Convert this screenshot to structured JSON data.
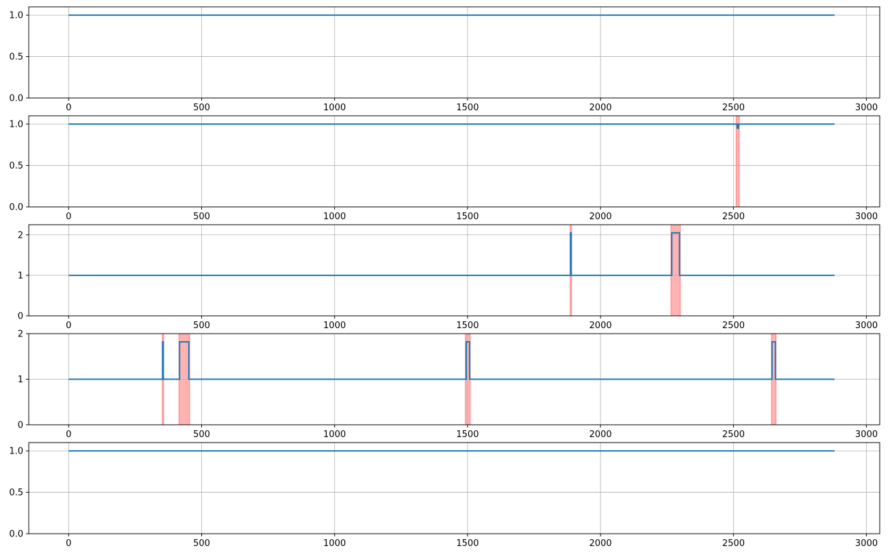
{
  "chart_data": [
    {
      "type": "line",
      "xlim": [
        -150,
        3050
      ],
      "ylim": [
        0,
        1.1
      ],
      "xticks": [
        "0",
        "500",
        "1000",
        "1500",
        "2000",
        "2500",
        "3000"
      ],
      "yticks": [
        "0.0",
        "0.5",
        "1.0"
      ],
      "grid": true,
      "series": [
        {
          "points": [
            [
              0,
              1.0
            ],
            [
              2880,
              1.0
            ]
          ]
        }
      ],
      "highlight_spans": []
    },
    {
      "type": "line",
      "xlim": [
        -150,
        3050
      ],
      "ylim": [
        0,
        1.1
      ],
      "xticks": [
        "0",
        "500",
        "1000",
        "1500",
        "2000",
        "2500",
        "3000"
      ],
      "yticks": [
        "0.0",
        "0.5",
        "1.0"
      ],
      "grid": true,
      "series": [
        {
          "points": [
            [
              0,
              1.0
            ],
            [
              2514,
              1.0
            ],
            [
              2514,
              0.95
            ],
            [
              2519,
              0.95
            ],
            [
              2519,
              1.0
            ],
            [
              2880,
              1.0
            ]
          ]
        }
      ],
      "highlight_spans": [
        [
          2510,
          2522
        ]
      ]
    },
    {
      "type": "line",
      "xlim": [
        -150,
        3050
      ],
      "ylim": [
        0,
        2.25
      ],
      "xticks": [
        "0",
        "500",
        "1000",
        "1500",
        "2000",
        "2500",
        "3000"
      ],
      "yticks": [
        "0",
        "1",
        "2"
      ],
      "grid": true,
      "series": [
        {
          "points": [
            [
              0,
              1.0
            ],
            [
              1887,
              1.0
            ],
            [
              1887,
              2.05
            ],
            [
              1890,
              2.05
            ],
            [
              1890,
              1.0
            ],
            [
              2268,
              1.0
            ],
            [
              2268,
              2.05
            ],
            [
              2297,
              2.05
            ],
            [
              2297,
              1.0
            ],
            [
              2880,
              1.0
            ]
          ]
        }
      ],
      "highlight_spans": [
        [
          1886,
          1891
        ],
        [
          2265,
          2300
        ]
      ]
    },
    {
      "type": "line",
      "xlim": [
        -150,
        3050
      ],
      "ylim": [
        0,
        2.0
      ],
      "xticks": [
        "0",
        "500",
        "1000",
        "1500",
        "2000",
        "2500",
        "3000"
      ],
      "yticks": [
        "0",
        "1",
        "2"
      ],
      "grid": true,
      "series": [
        {
          "points": [
            [
              0,
              1.0
            ],
            [
              353,
              1.0
            ],
            [
              353,
              1.82
            ],
            [
              356,
              1.82
            ],
            [
              356,
              1.0
            ],
            [
              417,
              1.0
            ],
            [
              417,
              1.82
            ],
            [
              452,
              1.82
            ],
            [
              452,
              1.0
            ],
            [
              1495,
              1.0
            ],
            [
              1495,
              1.82
            ],
            [
              1508,
              1.82
            ],
            [
              1508,
              1.0
            ],
            [
              2645,
              1.0
            ],
            [
              2645,
              1.82
            ],
            [
              2658,
              1.82
            ],
            [
              2658,
              1.0
            ],
            [
              2880,
              1.0
            ]
          ]
        }
      ],
      "highlight_spans": [
        [
          352,
          357
        ],
        [
          415,
          455
        ],
        [
          1492,
          1510
        ],
        [
          2643,
          2660
        ]
      ]
    },
    {
      "type": "line",
      "xlim": [
        -150,
        3050
      ],
      "ylim": [
        0,
        1.1
      ],
      "xticks": [
        "0",
        "500",
        "1000",
        "1500",
        "2000",
        "2500",
        "3000"
      ],
      "yticks": [
        "0.0",
        "0.5",
        "1.0"
      ],
      "grid": true,
      "series": [
        {
          "points": [
            [
              0,
              1.0
            ],
            [
              2880,
              1.0
            ]
          ]
        }
      ],
      "highlight_spans": []
    }
  ],
  "colors": {
    "line": "#1f77b4",
    "highlight": "#ff7f7f",
    "grid": "#b0b0b0"
  }
}
